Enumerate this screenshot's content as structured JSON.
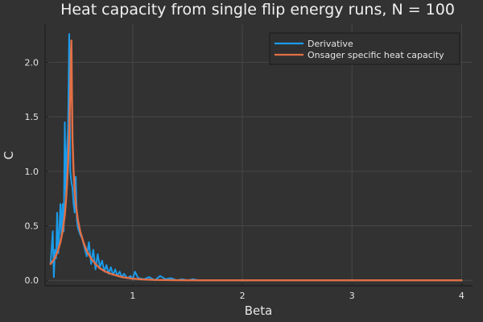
{
  "chart_data": {
    "type": "line",
    "title": "Heat capacity from single flip energy runs, N = 100",
    "xlabel": "Beta",
    "ylabel": "C",
    "xlim": [
      0.2,
      4.1
    ],
    "ylim": [
      -0.05,
      2.35
    ],
    "xticks": [
      1,
      2,
      3,
      4
    ],
    "yticks": [
      0.0,
      0.5,
      1.0,
      1.5,
      2.0
    ],
    "xtick_labels": [
      "1",
      "2",
      "3",
      "4"
    ],
    "ytick_labels": [
      "0.0",
      "0.5",
      "1.0",
      "1.5",
      "2.0"
    ],
    "grid": true,
    "legend_position": "top-right",
    "series": [
      {
        "name": "Derivative",
        "color": "#1b9bea",
        "x": [
          0.25,
          0.27,
          0.28,
          0.29,
          0.3,
          0.31,
          0.32,
          0.33,
          0.34,
          0.35,
          0.36,
          0.37,
          0.38,
          0.39,
          0.4,
          0.41,
          0.42,
          0.43,
          0.44,
          0.45,
          0.46,
          0.47,
          0.48,
          0.49,
          0.5,
          0.52,
          0.54,
          0.56,
          0.58,
          0.6,
          0.62,
          0.64,
          0.66,
          0.68,
          0.7,
          0.72,
          0.74,
          0.76,
          0.78,
          0.8,
          0.82,
          0.84,
          0.86,
          0.88,
          0.9,
          0.92,
          0.95,
          0.98,
          1.0,
          1.02,
          1.05,
          1.1,
          1.15,
          1.2,
          1.25,
          1.3,
          1.35,
          1.4,
          1.45,
          1.5,
          1.55,
          1.6,
          1.7,
          1.8,
          2.0,
          2.5,
          3.0,
          3.5,
          4.0
        ],
        "values": [
          0.15,
          0.45,
          0.03,
          0.28,
          0.2,
          0.62,
          0.25,
          0.45,
          0.7,
          0.4,
          0.7,
          0.45,
          1.45,
          0.75,
          1.2,
          1.4,
          2.26,
          1.0,
          0.9,
          0.85,
          0.7,
          0.62,
          0.95,
          0.55,
          0.48,
          0.42,
          0.38,
          0.3,
          0.22,
          0.35,
          0.15,
          0.28,
          0.1,
          0.24,
          0.12,
          0.18,
          0.08,
          0.14,
          0.06,
          0.12,
          0.05,
          0.1,
          0.04,
          0.08,
          0.03,
          0.06,
          0.02,
          0.04,
          0.01,
          0.08,
          0.02,
          0.01,
          0.03,
          0.0,
          0.04,
          0.01,
          0.02,
          0.0,
          0.01,
          0.0,
          0.01,
          0.0,
          0.0,
          0.0,
          0.0,
          0.0,
          0.0,
          0.0,
          0.0
        ]
      },
      {
        "name": "Onsager specific heat capacity",
        "color": "#e26f46",
        "x": [
          0.25,
          0.28,
          0.3,
          0.32,
          0.34,
          0.36,
          0.38,
          0.39,
          0.4,
          0.41,
          0.42,
          0.43,
          0.435,
          0.44,
          0.445,
          0.45,
          0.46,
          0.47,
          0.48,
          0.5,
          0.52,
          0.55,
          0.58,
          0.62,
          0.66,
          0.7,
          0.75,
          0.8,
          0.85,
          0.9,
          1.0,
          1.1,
          1.2,
          1.4,
          1.6,
          2.0,
          2.5,
          3.0,
          3.5,
          4.0
        ],
        "values": [
          0.15,
          0.19,
          0.23,
          0.28,
          0.35,
          0.45,
          0.6,
          0.72,
          0.88,
          1.08,
          1.35,
          1.75,
          2.05,
          2.2,
          1.7,
          1.3,
          1.0,
          0.82,
          0.7,
          0.55,
          0.45,
          0.35,
          0.27,
          0.2,
          0.15,
          0.11,
          0.08,
          0.06,
          0.045,
          0.03,
          0.015,
          0.008,
          0.004,
          0.001,
          0.0,
          0.0,
          0.0,
          0.0,
          0.0,
          0.0
        ]
      }
    ]
  }
}
